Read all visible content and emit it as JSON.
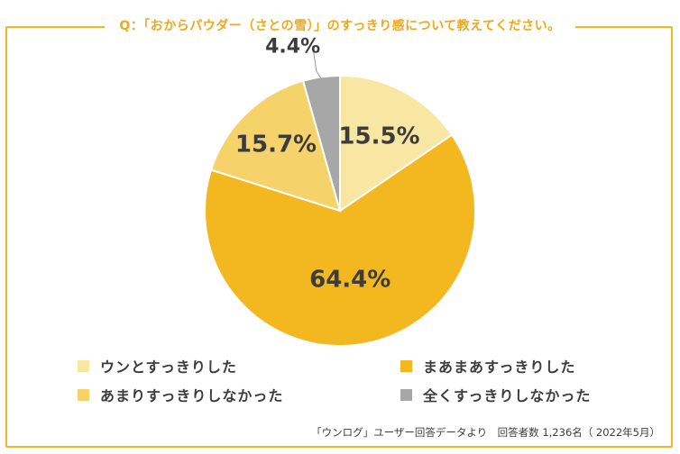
{
  "title": "Q：「おからパウダー（さとの雪）」のすっきり感について教えてください。",
  "source_note": "「ウンログ」ユーザー回答データより　回答者数 1,236名（ 2022年5月）",
  "colors": {
    "accent": "#f3b81f",
    "title_text": "#f0a81b",
    "label_text": "#3c3c3c"
  },
  "chart_data": {
    "type": "pie",
    "title": "Q：「おからパウダー（さとの雪）」のすっきり感について教えてください。",
    "slices": [
      {
        "label": "ウンとすっきりした",
        "value": 15.5,
        "value_label": "15.5%",
        "color": "#f8e6a3"
      },
      {
        "label": "まあまあすっきりした",
        "value": 64.4,
        "value_label": "64.4%",
        "color": "#f3b81f"
      },
      {
        "label": "あまりすっきりしなかった",
        "value": 15.7,
        "value_label": "15.7%",
        "color": "#f5d26a"
      },
      {
        "label": "全くすっきりしなかった",
        "value": 4.4,
        "value_label": "4.4%",
        "color": "#a7a7a7"
      }
    ],
    "start": "12 o'clock",
    "direction": "clockwise",
    "legend_position": "bottom"
  }
}
